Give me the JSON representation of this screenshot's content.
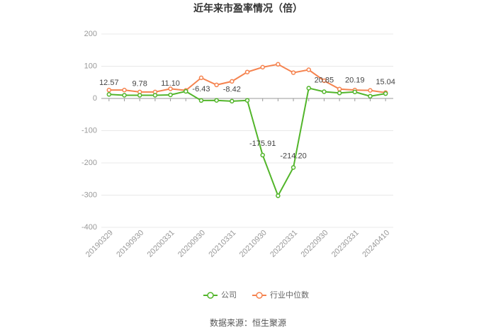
{
  "chart_data": {
    "type": "line",
    "title": "近年来市盈率情况（倍）",
    "categories": [
      "20190329",
      null,
      "20190930",
      null,
      "20200331",
      null,
      "20200930",
      null,
      "20210331",
      null,
      "20210930",
      null,
      "20220331",
      null,
      "20220930",
      null,
      "20230331",
      null,
      "20240410"
    ],
    "series": [
      {
        "name": "公司",
        "color": "#52b52a",
        "values": [
          12.57,
          10,
          9.78,
          10,
          11.1,
          22,
          -6.43,
          -6,
          -8.42,
          -6,
          -175.91,
          -302,
          -214.2,
          32,
          20.85,
          17,
          20.19,
          7,
          15.04
        ],
        "value_labels": [
          "12.57",
          null,
          "9.78",
          null,
          "11.10",
          null,
          "-6.43",
          null,
          "-8.42",
          null,
          "-175.91",
          null,
          "-214.20",
          null,
          "20.85",
          null,
          "20.19",
          null,
          "15.04"
        ]
      },
      {
        "name": "行业中位数",
        "color": "#f5834f",
        "values": [
          26,
          26,
          20,
          20,
          30,
          25,
          64,
          42,
          53,
          82,
          97,
          106,
          80,
          89,
          55,
          29,
          26,
          25,
          18
        ]
      }
    ],
    "ylim": [
      -400,
      200
    ],
    "yticks": [
      -400,
      -300,
      -200,
      -100,
      0,
      100,
      200
    ],
    "grid": true,
    "legend": "bottom",
    "source": "数据来源：恒生聚源"
  }
}
